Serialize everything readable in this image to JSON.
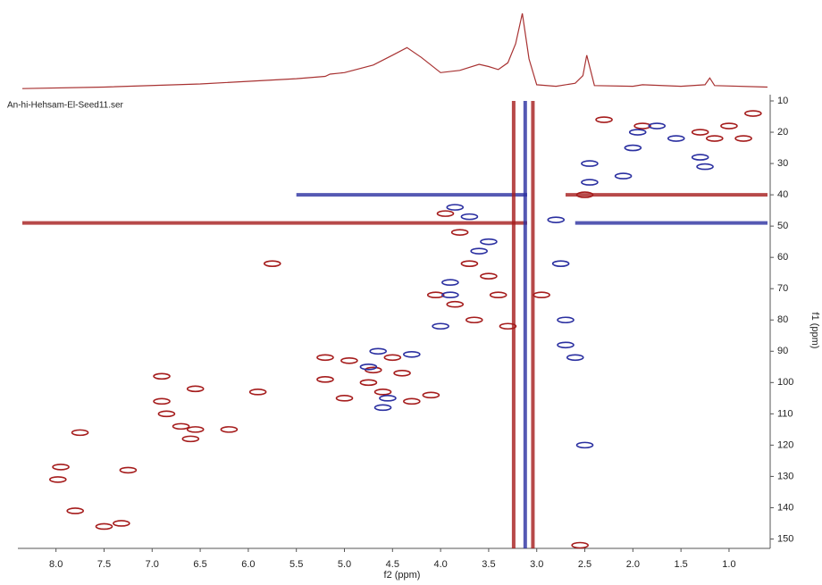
{
  "chart_data": {
    "type": "hsqc",
    "file_label": "An-hi-Hehsam-El-Seed11.ser",
    "xlabel": "f2 (ppm)",
    "ylabel": "f1 (ppm)",
    "xlim": [
      8.35,
      0.6
    ],
    "ylim": [
      8,
      153
    ],
    "xticks": [
      {
        "value": 8,
        "label": "8.0"
      },
      7.5,
      {
        "value": 7,
        "label": "7.0"
      },
      6.5,
      {
        "value": 6,
        "label": "6.0"
      },
      5.5,
      {
        "value": 5,
        "label": "5.0"
      },
      4.5,
      {
        "value": 4,
        "label": "4.0"
      },
      3.5,
      {
        "value": 3,
        "label": "3.0"
      },
      2.5,
      {
        "value": 2,
        "label": "2.0"
      },
      1.5,
      {
        "value": 1,
        "label": "1.0"
      }
    ],
    "yticks": [
      10,
      20,
      30,
      40,
      50,
      60,
      70,
      80,
      90,
      100,
      110,
      120,
      130,
      140,
      150
    ],
    "trace": {
      "color": "#a83232",
      "x": [
        8.35,
        7.5,
        6.5,
        5.5,
        5.2,
        5.15,
        5.0,
        4.7,
        4.5,
        4.35,
        4.2,
        4.0,
        3.8,
        3.6,
        3.5,
        3.4,
        3.3,
        3.22,
        3.15,
        3.08,
        3.0,
        2.8,
        2.6,
        2.52,
        2.48,
        2.4,
        2.0,
        1.9,
        1.5,
        1.25,
        1.2,
        1.15,
        0.6
      ],
      "values": [
        1,
        3,
        7,
        14,
        17,
        20,
        22,
        32,
        45,
        55,
        42,
        22,
        25,
        33,
        30,
        26,
        35,
        60,
        100,
        40,
        6,
        4,
        8,
        18,
        45,
        5,
        4,
        6,
        4,
        6,
        15,
        5,
        3
      ]
    },
    "streaks": [
      {
        "color": "#a51c1c",
        "x": [
          8.35,
          3.1
        ],
        "y": [
          49,
          49
        ]
      },
      {
        "color": "#2a2fa0",
        "x": [
          2.6,
          0.6
        ],
        "y": [
          49,
          49
        ]
      },
      {
        "color": "#2a2fa0",
        "x": [
          5.5,
          3.1
        ],
        "y": [
          40,
          40
        ]
      },
      {
        "color": "#a51c1c",
        "x": [
          2.7,
          0.6
        ],
        "y": [
          40,
          40
        ]
      },
      {
        "color": "#a51c1c",
        "x": [
          3.24,
          3.24
        ],
        "y": [
          10,
          153
        ]
      },
      {
        "color": "#2a2fa0",
        "x": [
          3.12,
          3.12
        ],
        "y": [
          10,
          153
        ]
      },
      {
        "color": "#a51c1c",
        "x": [
          3.04,
          3.04
        ],
        "y": [
          10,
          153
        ]
      }
    ],
    "series": [
      {
        "color": "#a51c1c",
        "x": [
          7.95,
          7.98,
          7.75,
          7.8,
          7.5,
          7.32,
          7.25,
          6.9,
          6.9,
          6.85,
          6.7,
          6.55,
          6.55,
          6.6,
          6.2,
          5.75,
          5.9,
          5.2,
          4.95,
          5.0,
          5.2,
          4.75,
          4.6,
          4.4,
          4.1,
          4.3,
          4.5,
          4.7,
          4.05,
          3.85,
          3.65,
          3.4,
          3.5,
          3.7,
          3.8,
          3.95,
          3.3,
          2.95,
          2.5,
          2.55,
          1.3,
          1.15,
          1.0,
          0.85,
          0.75,
          1.9,
          2.3
        ],
        "y": [
          127,
          131,
          116,
          141,
          146,
          145,
          128,
          98,
          106,
          110,
          114,
          115,
          102,
          118,
          115,
          62,
          103,
          92,
          93,
          105,
          99,
          100,
          103,
          97,
          104,
          106,
          92,
          96,
          72,
          75,
          80,
          72,
          66,
          62,
          52,
          46,
          82,
          72,
          40,
          152,
          20,
          22,
          18,
          22,
          14,
          18,
          16
        ]
      },
      {
        "color": "#2a2fa0",
        "x": [
          4.65,
          4.75,
          4.6,
          4.3,
          4.0,
          3.9,
          3.6,
          3.5,
          3.85,
          3.7,
          2.8,
          2.75,
          2.7,
          2.6,
          2.45,
          2.1,
          2.0,
          1.95,
          1.75,
          1.55,
          1.3,
          1.25,
          2.45,
          2.5,
          4.55,
          3.9,
          2.7
        ],
        "y": [
          90,
          95,
          108,
          91,
          82,
          68,
          58,
          55,
          44,
          47,
          48,
          62,
          80,
          92,
          30,
          34,
          25,
          20,
          18,
          22,
          28,
          31,
          36,
          120,
          105,
          72,
          88
        ]
      }
    ]
  }
}
